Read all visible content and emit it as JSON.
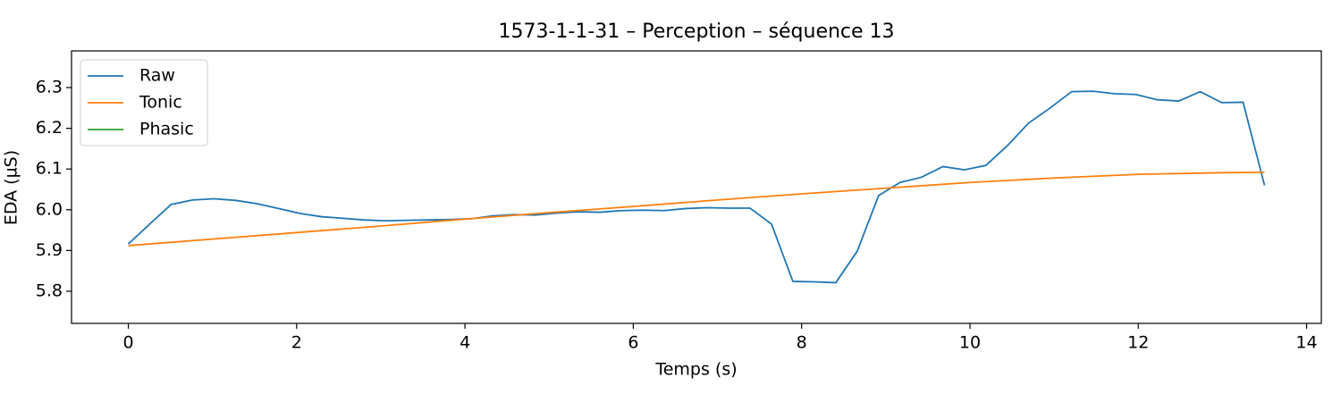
{
  "chart_data": {
    "type": "line",
    "title": "1573-1-1-31 – Perception – séquence 13",
    "x_label": "Temps (s)",
    "y_label": "EDA (µS)",
    "xlim": [
      -0.675,
      14.175
    ],
    "xticks": [
      0,
      2,
      4,
      6,
      8,
      10,
      12,
      14
    ],
    "ylim": [
      5.721,
      6.39
    ],
    "yticks": [
      5.8,
      5.9,
      {
        "value": 6,
        "label": "6.0"
      },
      6.1,
      6.2,
      6.3
    ],
    "legend": "upper left",
    "series": [
      {
        "name": "Raw",
        "color": "#1f77b4",
        "x": [
          0,
          0.255,
          0.509,
          0.764,
          1.019,
          1.274,
          1.528,
          1.783,
          2.038,
          2.292,
          2.547,
          2.802,
          3.057,
          3.311,
          3.566,
          3.821,
          4.075,
          4.33,
          4.585,
          4.84,
          5.094,
          5.349,
          5.604,
          5.858,
          6.113,
          6.368,
          6.623,
          6.877,
          7.132,
          7.387,
          7.642,
          7.896,
          8.151,
          8.406,
          8.66,
          8.915,
          9.17,
          9.425,
          9.679,
          9.934,
          10.189,
          10.443,
          10.698,
          10.953,
          11.208,
          11.462,
          11.717,
          11.972,
          12.226,
          12.481,
          12.736,
          12.991,
          13.245,
          13.5
        ],
        "values": [
          5.916,
          5.965,
          6.013,
          6.024,
          6.027,
          6.023,
          6.015,
          6.003,
          5.991,
          5.983,
          5.979,
          5.975,
          5.973,
          5.974,
          5.975,
          5.976,
          5.978,
          5.985,
          5.988,
          5.987,
          5.992,
          5.995,
          5.994,
          5.998,
          5.999,
          5.998,
          6.003,
          6.005,
          6.004,
          6.004,
          5.965,
          5.824,
          5.823,
          5.821,
          5.898,
          6.035,
          6.067,
          6.08,
          6.106,
          6.098,
          6.109,
          6.157,
          6.213,
          6.25,
          6.29,
          6.291,
          6.285,
          6.283,
          6.27,
          6.267,
          6.29,
          6.263,
          6.264,
          6.06
        ]
      },
      {
        "name": "Tonic",
        "color": "#ff7f0e",
        "x": [
          0,
          1,
          2,
          3,
          4,
          5,
          6,
          7,
          8,
          9,
          10,
          11,
          12,
          13,
          13.5
        ],
        "values": [
          5.912,
          5.928,
          5.944,
          5.96,
          5.977,
          5.993,
          6.008,
          6.024,
          6.039,
          6.053,
          6.067,
          6.078,
          6.087,
          6.091,
          6.092
        ]
      },
      {
        "name": "Phasic",
        "color": "#2ca02c",
        "x": [],
        "values": []
      }
    ]
  }
}
